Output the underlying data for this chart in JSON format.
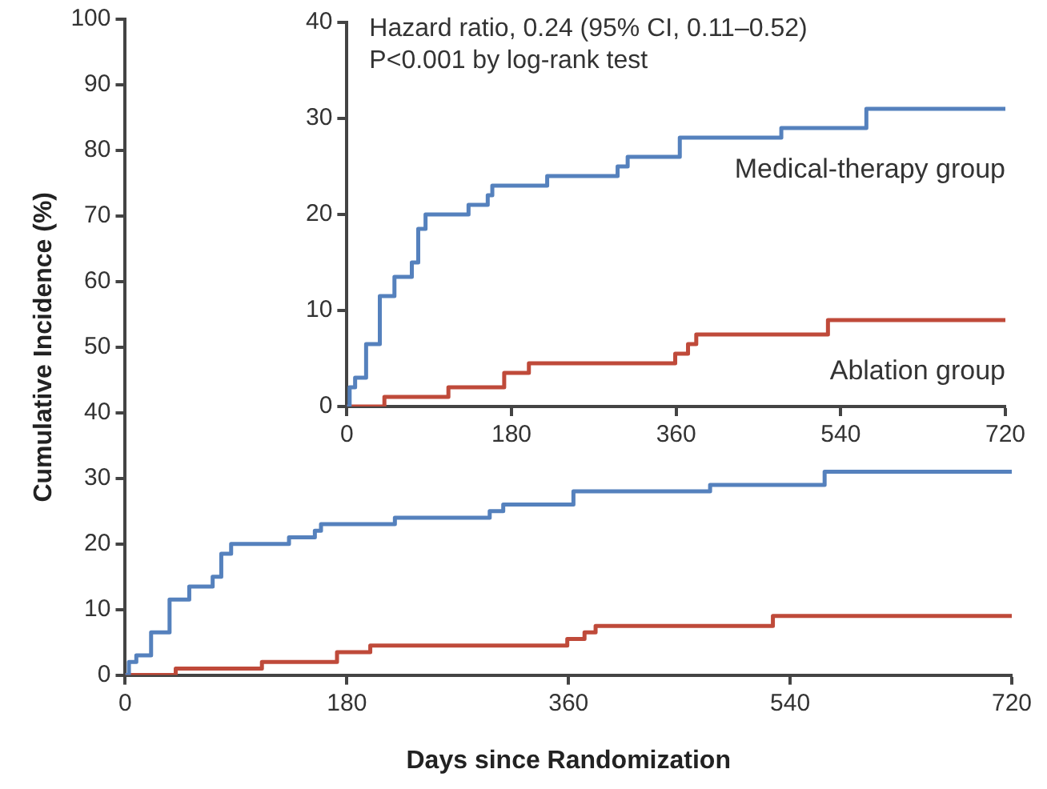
{
  "chart_data": [
    {
      "type": "step",
      "xlabel": "Days since Randomization",
      "ylabel": "Cumulative Incidence (%)",
      "xlim": [
        0,
        720
      ],
      "xticks": [
        0,
        180,
        360,
        540,
        720
      ],
      "ylim": [
        0,
        100
      ],
      "yticks": [
        0,
        10,
        20,
        30,
        40,
        50,
        60,
        70,
        80,
        90,
        100
      ],
      "grid": false,
      "legend": false,
      "series": [
        {
          "color": "#5581bd",
          "x": [
            0,
            3,
            9,
            21,
            36,
            52,
            71,
            78,
            86,
            133,
            154,
            159,
            219,
            296,
            307,
            364,
            475,
            568,
            720
          ],
          "values": [
            0,
            2,
            3,
            6.5,
            11.5,
            13.5,
            15,
            18.5,
            20,
            21,
            22,
            23,
            24,
            25,
            26,
            28,
            29,
            31,
            31
          ]
        },
        {
          "color": "#bf4a3a",
          "x": [
            0,
            41,
            111,
            172,
            199,
            359,
            373,
            382,
            526,
            720
          ],
          "values": [
            0,
            1,
            2,
            3.5,
            4.5,
            5.5,
            6.5,
            7.5,
            9,
            9
          ]
        }
      ]
    },
    {
      "type": "step",
      "xlim": [
        0,
        720
      ],
      "xticks": [
        0,
        180,
        360,
        540,
        720
      ],
      "ylim": [
        0,
        40
      ],
      "yticks": [
        0,
        10,
        20,
        30,
        40
      ],
      "grid": false,
      "legend": false,
      "annotations": [
        "Hazard ratio, 0.24 (95% CI, 0.11–0.52)",
        "P<0.001 by log-rank test"
      ],
      "series": [
        {
          "name": "Medical-therapy group",
          "color": "#5581bd",
          "x": [
            0,
            3,
            9,
            21,
            36,
            52,
            71,
            78,
            86,
            133,
            154,
            159,
            219,
            296,
            307,
            364,
            475,
            568,
            720
          ],
          "values": [
            0,
            2,
            3,
            6.5,
            11.5,
            13.5,
            15,
            18.5,
            20,
            21,
            22,
            23,
            24,
            25,
            26,
            28,
            29,
            31,
            31
          ]
        },
        {
          "name": "Ablation group",
          "color": "#bf4a3a",
          "x": [
            0,
            41,
            111,
            172,
            199,
            359,
            373,
            382,
            526,
            720
          ],
          "values": [
            0,
            1,
            2,
            3.5,
            4.5,
            5.5,
            6.5,
            7.5,
            9,
            9
          ]
        }
      ]
    }
  ]
}
